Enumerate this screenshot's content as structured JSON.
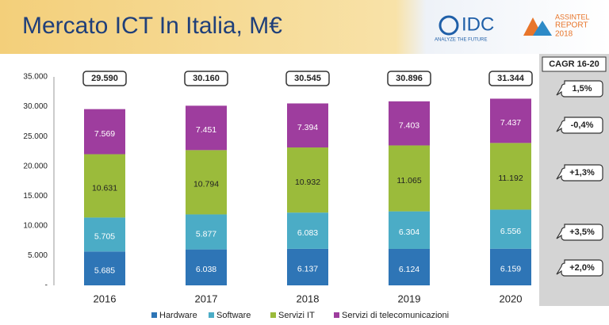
{
  "header": {
    "title": "Mercato ICT In Italia, M€",
    "logos": [
      "IDC",
      "ANALYZE THE FUTURE",
      "ASSINTEL",
      "REPORT",
      "2018"
    ]
  },
  "chart_data": {
    "type": "stacked_bar",
    "categories": [
      "2016",
      "2017",
      "2018",
      "2019",
      "2020"
    ],
    "series": [
      {
        "name": "Hardware",
        "color": "#2e75b6",
        "values": [
          5685,
          6038,
          6137,
          6124,
          6159
        ],
        "value_labels": [
          "5.685",
          "6.038",
          "6.137",
          "6.124",
          "6.159"
        ]
      },
      {
        "name": "Software",
        "color": "#4bacc6",
        "values": [
          5705,
          5877,
          6083,
          6304,
          6556
        ],
        "value_labels": [
          "5.705",
          "5.877",
          "6.083",
          "6.304",
          "6.556"
        ]
      },
      {
        "name": "Servizi IT",
        "color": "#9bbb3b",
        "values": [
          10631,
          10794,
          10932,
          11065,
          11192
        ],
        "value_labels": [
          "10.631",
          "10.794",
          "10.932",
          "11.065",
          "11.192"
        ]
      },
      {
        "name": "Servizi di telecomunicazioni",
        "color": "#9e3d9e",
        "values": [
          7569,
          7451,
          7394,
          7403,
          7437
        ],
        "value_labels": [
          "7.569",
          "7.451",
          "7.394",
          "7.403",
          "7.437"
        ]
      }
    ],
    "totals": {
      "values": [
        29590,
        30160,
        30545,
        30896,
        31344
      ],
      "value_labels": [
        "29.590",
        "30.160",
        "30.545",
        "30.896",
        "31.344"
      ]
    },
    "cagr": {
      "title": "CAGR 16-20",
      "labels": [
        "1,5%",
        "-0,4%",
        "+1,3%",
        "+3,5%",
        "+2,0%"
      ]
    },
    "ylim": [
      0,
      35000
    ],
    "yticks": [
      {
        "value": 0,
        "label": "-"
      },
      {
        "value": 5000,
        "label": "5.000"
      },
      {
        "value": 10000,
        "label": "10.000"
      },
      {
        "value": 15000,
        "label": "15.000"
      },
      {
        "value": 20000,
        "label": "20.000"
      },
      {
        "value": 25000,
        "label": "25.000"
      },
      {
        "value": 30000,
        "label": "30.000"
      },
      {
        "value": 35000,
        "label": "35.000"
      }
    ],
    "legend": "bottom"
  }
}
